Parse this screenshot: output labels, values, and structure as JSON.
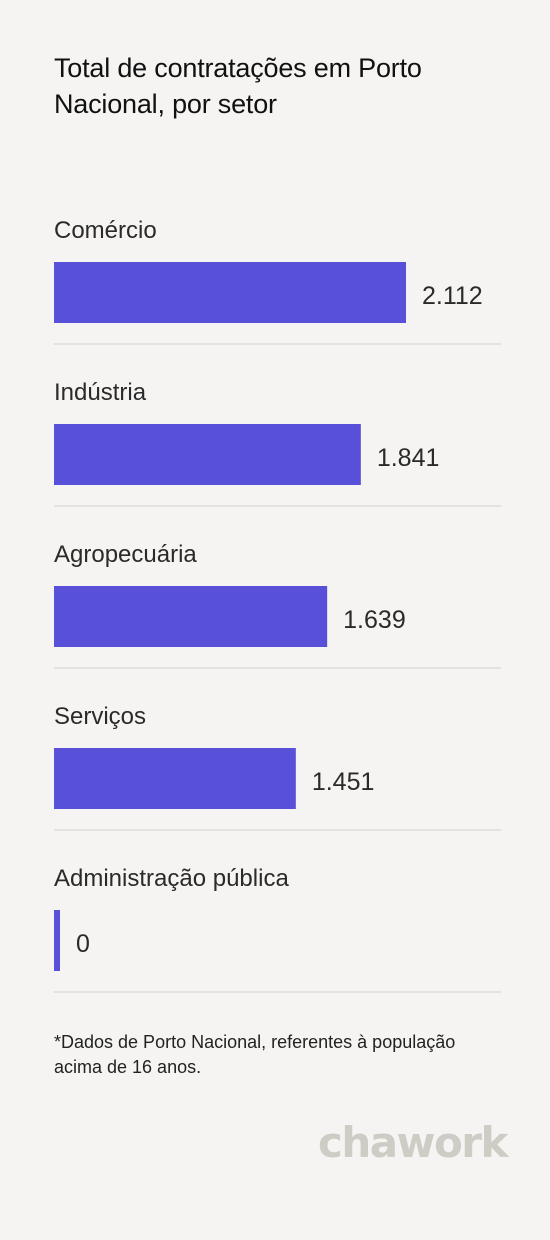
{
  "title": "Total de contratações em Porto Nacional, por setor",
  "footnote": "*Dados de Porto Nacional, referentes à população acima de 16 anos.",
  "brand": "chawork",
  "colors": {
    "bar": "#5850d8",
    "background": "#f5f4f2",
    "divider": "#dedcd8"
  },
  "chart_data": {
    "type": "bar",
    "orientation": "horizontal",
    "title": "Total de contratações em Porto Nacional, por setor",
    "categories": [
      "Comércio",
      "Indústria",
      "Agropecuária",
      "Serviços",
      "Administração pública"
    ],
    "values": [
      2112,
      1841,
      1639,
      1451,
      0
    ],
    "value_labels": [
      "2.112",
      "1.841",
      "1.639",
      "1.451",
      "0"
    ],
    "xlim": [
      0,
      2112
    ],
    "grid": false,
    "legend": "none"
  }
}
